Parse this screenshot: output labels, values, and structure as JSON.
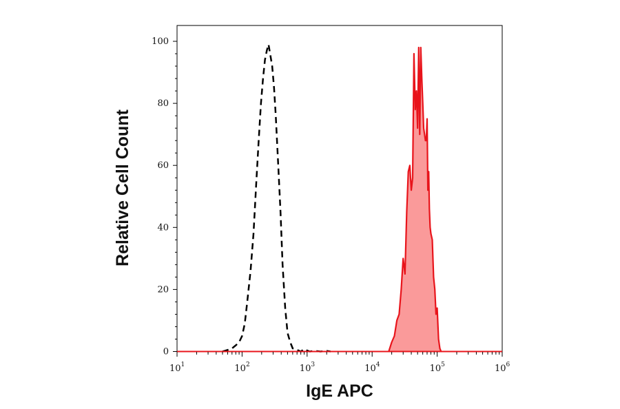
{
  "chart_data": {
    "type": "area",
    "title": "",
    "xlabel": "IgE APC",
    "ylabel": "Relative Cell Count",
    "x_scale": "log",
    "xlim": [
      10,
      1000000
    ],
    "ylim": [
      0,
      104
    ],
    "x_ticks": [
      {
        "base": "10",
        "exp": "1"
      },
      {
        "base": "10",
        "exp": "2"
      },
      {
        "base": "10",
        "exp": "3"
      },
      {
        "base": "10",
        "exp": "4"
      },
      {
        "base": "10",
        "exp": "5"
      },
      {
        "base": "10",
        "exp": "6"
      }
    ],
    "y_ticks": [
      "0",
      "20",
      "40",
      "60",
      "80",
      "100"
    ],
    "grid": false,
    "series": [
      {
        "style": "dashed line",
        "color": "#000000",
        "x": [
          50,
          60,
          70,
          80,
          90,
          100,
          110,
          120,
          135,
          150,
          165,
          180,
          195,
          210,
          225,
          240,
          255,
          270,
          290,
          310,
          330,
          360,
          390,
          420,
          460,
          500,
          550,
          600,
          700,
          800,
          900,
          1000,
          1100,
          1300,
          1600,
          2000,
          2300
        ],
        "y": [
          0,
          0.5,
          1,
          2,
          3,
          5,
          9,
          16,
          26,
          38,
          54,
          68,
          80,
          88,
          94,
          97,
          99,
          96,
          92,
          85,
          76,
          60,
          45,
          28,
          14,
          6,
          3,
          1,
          0.5,
          0,
          0.8,
          0.3,
          0,
          0.2,
          0,
          0.2,
          0
        ]
      },
      {
        "style": "filled area",
        "color": "#e8141b",
        "fill": "#fa9a9a",
        "x": [
          18000,
          20000,
          22000,
          24000,
          26000,
          28000,
          30000,
          32000,
          34000,
          36000,
          38000,
          40000,
          42000,
          44000,
          46000,
          48000,
          50000,
          52000,
          54000,
          56000,
          58000,
          60000,
          62000,
          64000,
          66000,
          68000,
          70000,
          72000,
          74000,
          76000,
          78000,
          80000,
          84000,
          88000,
          92000,
          96000,
          100000,
          105000,
          110000,
          115000
        ],
        "y": [
          0,
          3,
          5,
          10,
          12,
          20,
          30,
          25,
          45,
          58,
          60,
          52,
          56,
          96,
          78,
          84,
          72,
          98,
          70,
          98,
          88,
          80,
          72,
          70,
          68,
          68,
          75,
          52,
          58,
          46,
          40,
          38,
          36,
          24,
          20,
          12,
          14,
          4,
          1,
          0
        ]
      }
    ]
  }
}
